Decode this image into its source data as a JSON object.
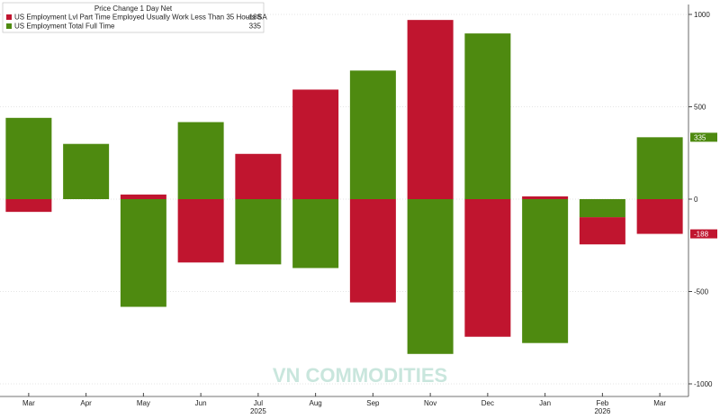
{
  "chart_data": {
    "type": "bar",
    "stacked": true,
    "legend_title": "Price Change 1 Day Net",
    "categories": [
      "Mar",
      "Apr",
      "May",
      "Jun",
      "Jul",
      "Aug",
      "Sep",
      "Nov",
      "Dec",
      "Jan",
      "Feb",
      "Mar"
    ],
    "years": [
      "2025",
      "2026"
    ],
    "series": [
      {
        "name": "US Employment Lvl Part Time Employed Usually Work Less Than 35 Hours SA",
        "color": "#c0152f",
        "values": [
          -69,
          0,
          25,
          -343,
          245,
          593,
          -559,
          970,
          -745,
          15,
          -147,
          -188
        ]
      },
      {
        "name": "US Employment Total Full Time",
        "color": "#4e8a10",
        "values": [
          440,
          299,
          -583,
          417,
          -353,
          -373,
          696,
          -838,
          897,
          -779,
          -98,
          335
        ]
      }
    ],
    "ylim": [
      -1000,
      1000
    ],
    "yticks": [
      -1000,
      -500,
      0,
      500,
      1000
    ],
    "grid": true,
    "watermark": "VN COMMODITIES"
  }
}
